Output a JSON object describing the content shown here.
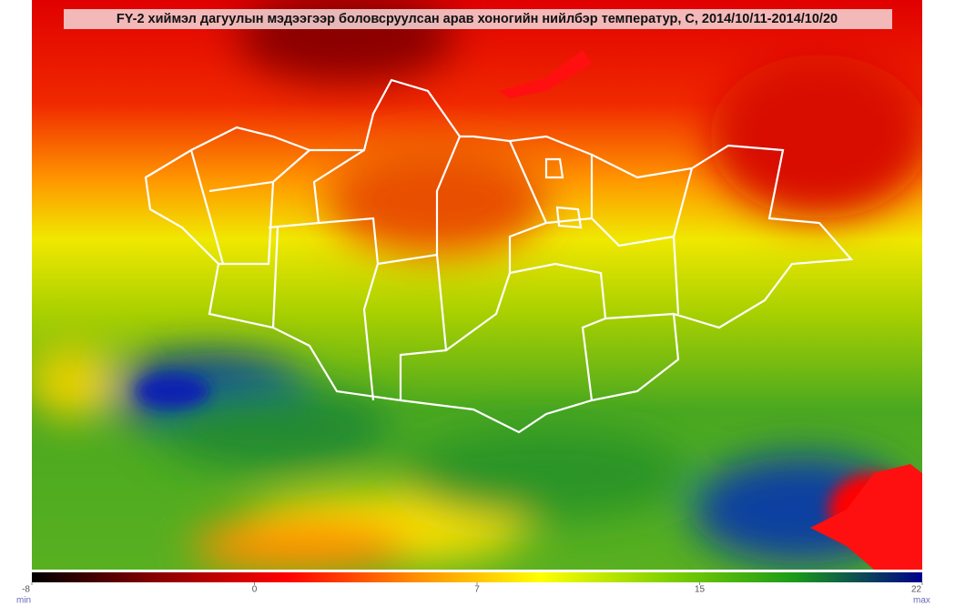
{
  "map": {
    "title": "FY-2 хиймэл дагуулын мэдээгээр боловсруулсан арав хоногийн нийлбэр температур, C, 2014/10/11-2014/10/20",
    "colorbar": {
      "ticks": [
        -8,
        0,
        7,
        15,
        22
      ],
      "min_label": "min",
      "max_label": "max",
      "colors": [
        "#000000",
        "#8b0000",
        "#ff0000",
        "#ff8c00",
        "#ffff00",
        "#7fd000",
        "#1a9a1a",
        "#00008b"
      ]
    }
  }
}
